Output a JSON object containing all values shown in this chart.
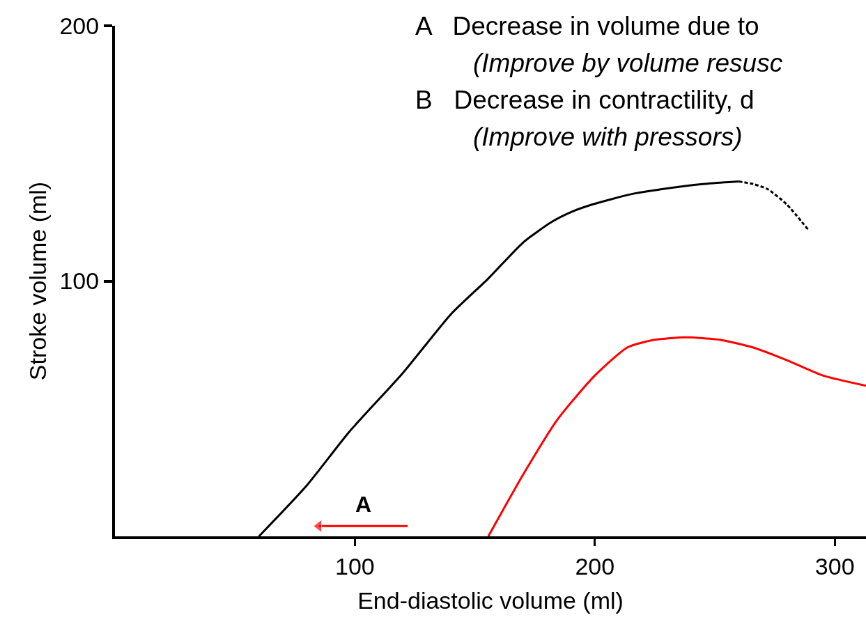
{
  "chart_data": {
    "type": "line",
    "xlabel": "End-diastolic volume (ml)",
    "ylabel": "Stroke volume (ml)",
    "xlim": [
      0,
      313
    ],
    "xticks": [
      100,
      200,
      300
    ],
    "ylim": [
      0,
      200
    ],
    "yticks": [
      100,
      200
    ],
    "grid": false,
    "marker": "none",
    "series": [
      {
        "color": "#000000",
        "x": [
          60,
          80,
          97.7,
          120,
          140,
          155.6,
          170,
          181.7,
          190,
          199,
          215,
          228,
          245,
          260
        ],
        "values": [
          0,
          20,
          41,
          64,
          87,
          101,
          115,
          123,
          127,
          130,
          134,
          136,
          138,
          139
        ]
      },
      {
        "color": "#000000",
        "line_style": "dashed",
        "x": [
          260,
          266,
          272,
          280,
          289
        ],
        "values": [
          139,
          138,
          136,
          130,
          120
        ]
      },
      {
        "color": "#ff0000",
        "x": [
          155.6,
          170,
          184.6,
          200,
          213.6,
          225,
          238,
          252,
          265.8,
          280,
          295,
          313
        ],
        "values": [
          0,
          24,
          46,
          63,
          74,
          77,
          78,
          77,
          74,
          69,
          63,
          59
        ]
      },
      {
        "color": "#ff0000",
        "marker": "triangle",
        "x": [
          122,
          85
        ],
        "values": [
          4,
          4
        ]
      }
    ],
    "annotations": [
      "A",
      "A   Decrease in volume due to",
      "(Improve by volume resusc",
      "B   Decrease in contractility, d",
      "(Improve with pressors)"
    ]
  }
}
